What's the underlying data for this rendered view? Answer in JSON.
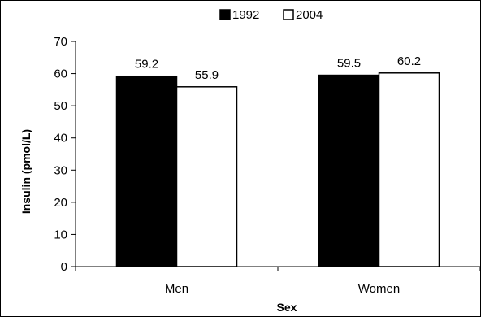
{
  "chart_data": {
    "type": "bar",
    "categories": [
      "Men",
      "Women"
    ],
    "series": [
      {
        "name": "1992",
        "values": [
          59.2,
          59.5
        ],
        "color": "#000000"
      },
      {
        "name": "2004",
        "values": [
          55.9,
          60.2
        ],
        "color": "#ffffff"
      }
    ],
    "xlabel": "Sex",
    "ylabel": "Insulin (pmol/L)",
    "ylim": [
      0,
      70
    ],
    "yticks": [
      0,
      10,
      20,
      30,
      40,
      50,
      60,
      70
    ],
    "grid": false,
    "legend_position": "top-center",
    "data_labels": true
  }
}
